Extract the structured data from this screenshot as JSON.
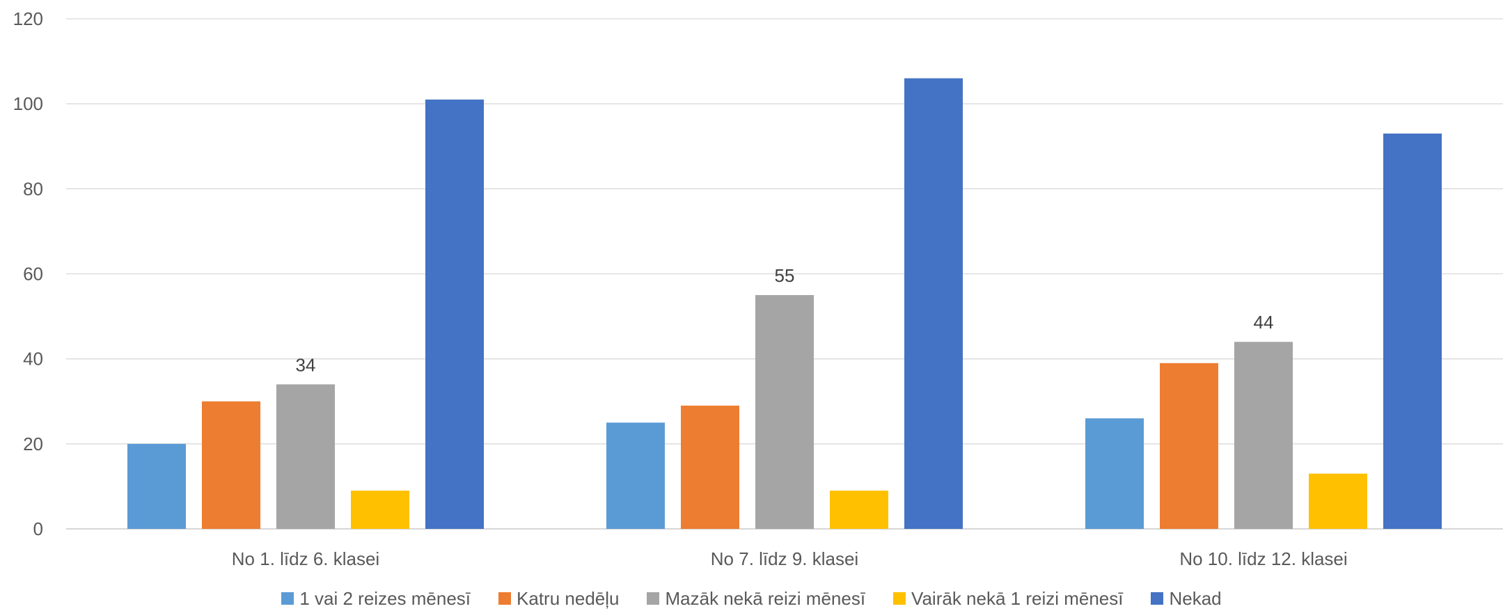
{
  "chart_data": {
    "type": "bar",
    "title": "",
    "xlabel": "",
    "ylabel": "",
    "ylim": [
      0,
      120
    ],
    "yticks": [
      0,
      20,
      40,
      60,
      80,
      100,
      120
    ],
    "grid": true,
    "legend_position": "bottom",
    "categories": [
      "No 1. līdz 6. klasei",
      "No 7. līdz 9. klasei",
      "No 10. līdz 12. klasei"
    ],
    "series": [
      {
        "name": "1 vai 2 reizes mēnesī",
        "color": "#5B9BD5",
        "values": [
          20,
          25,
          26
        ]
      },
      {
        "name": "Katru nedēļu",
        "color": "#ED7D31",
        "values": [
          30,
          29,
          39
        ]
      },
      {
        "name": "Mazāk nekā reizi mēnesī",
        "color": "#A5A5A5",
        "values": [
          34,
          55,
          44
        ],
        "data_labels": [
          "34",
          "55",
          "44"
        ]
      },
      {
        "name": "Vairāk nekā 1 reizi mēnesī",
        "color": "#FFC000",
        "values": [
          9,
          9,
          13
        ]
      },
      {
        "name": "Nekad",
        "color": "#4472C4",
        "values": [
          101,
          106,
          93
        ]
      }
    ]
  }
}
